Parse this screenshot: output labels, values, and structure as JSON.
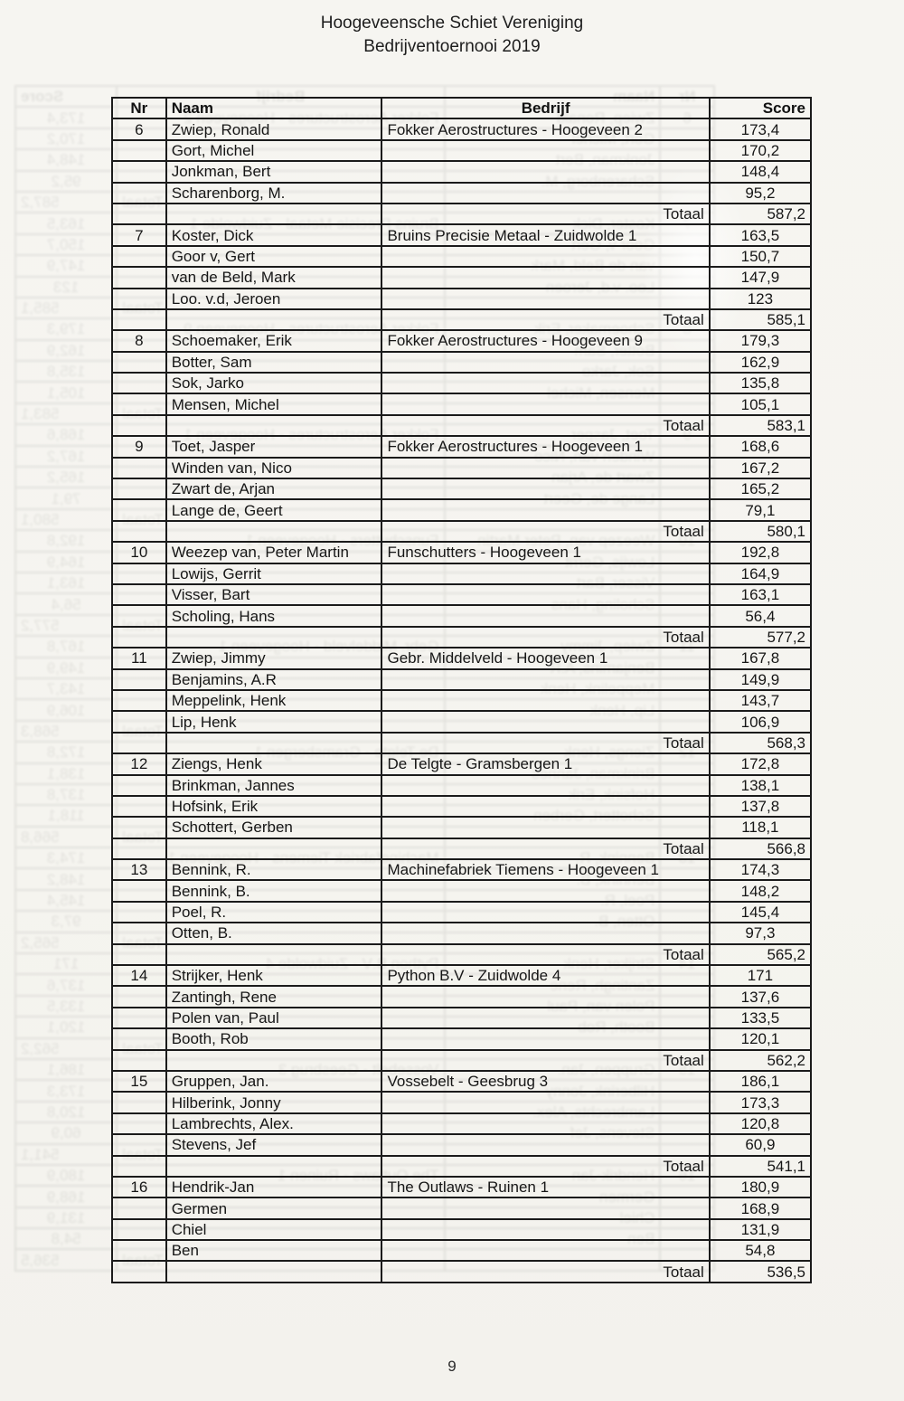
{
  "header": {
    "title": "Hoogeveensche Schiet Vereniging",
    "subtitle": "Bedrijventoernooi 2019"
  },
  "footer": {
    "page_number": "9"
  },
  "colors": {
    "paper": "#f5f4ef",
    "ink": "#161616",
    "table_border": "#1b1b1b"
  },
  "table": {
    "headers": {
      "nr": "Nr",
      "naam": "Naam",
      "bedrijf": "Bedrijf",
      "score": "Score"
    },
    "totaal_label": "Totaal",
    "groups": [
      {
        "nr": "6",
        "bedrijf": "Fokker Aerostructures - Hoogeveen 2",
        "players": [
          {
            "naam": "Zwiep, Ronald",
            "score": "173,4"
          },
          {
            "naam": "Gort, Michel",
            "score": "170,2"
          },
          {
            "naam": "Jonkman, Bert",
            "score": "148,4"
          },
          {
            "naam": "Scharenborg, M.",
            "score": "95,2"
          }
        ],
        "totaal": "587,2"
      },
      {
        "nr": "7",
        "bedrijf": "Bruins Precisie Metaal - Zuidwolde 1",
        "players": [
          {
            "naam": "Koster, Dick",
            "score": "163,5"
          },
          {
            "naam": "Goor v, Gert",
            "score": "150,7"
          },
          {
            "naam": "van de Beld, Mark",
            "score": "147,9"
          },
          {
            "naam": "Loo. v.d, Jeroen",
            "score": "123"
          }
        ],
        "totaal": "585,1"
      },
      {
        "nr": "8",
        "bedrijf": "Fokker Aerostructures - Hoogeveen 9",
        "players": [
          {
            "naam": "Schoemaker, Erik",
            "score": "179,3"
          },
          {
            "naam": "Botter, Sam",
            "score": "162,9"
          },
          {
            "naam": "Sok, Jarko",
            "score": "135,8"
          },
          {
            "naam": "Mensen, Michel",
            "score": "105,1"
          }
        ],
        "totaal": "583,1"
      },
      {
        "nr": "9",
        "bedrijf": "Fokker Aerostructures - Hoogeveen 1",
        "players": [
          {
            "naam": "Toet, Jasper",
            "score": "168,6"
          },
          {
            "naam": "Winden van, Nico",
            "score": "167,2"
          },
          {
            "naam": "Zwart de, Arjan",
            "score": "165,2"
          },
          {
            "naam": "Lange de, Geert",
            "score": "79,1"
          }
        ],
        "totaal": "580,1"
      },
      {
        "nr": "10",
        "bedrijf": "Funschutters - Hoogeveen 1",
        "players": [
          {
            "naam": "Weezep van, Peter Martin",
            "score": "192,8"
          },
          {
            "naam": "Lowijs, Gerrit",
            "score": "164,9"
          },
          {
            "naam": "Visser, Bart",
            "score": "163,1"
          },
          {
            "naam": "Scholing, Hans",
            "score": "56,4"
          }
        ],
        "totaal": "577,2"
      },
      {
        "nr": "11",
        "bedrijf": "Gebr. Middelveld - Hoogeveen 1",
        "players": [
          {
            "naam": "Zwiep, Jimmy",
            "score": "167,8"
          },
          {
            "naam": "Benjamins, A.R",
            "score": "149,9"
          },
          {
            "naam": "Meppelink, Henk",
            "score": "143,7"
          },
          {
            "naam": "Lip, Henk",
            "score": "106,9"
          }
        ],
        "totaal": "568,3"
      },
      {
        "nr": "12",
        "bedrijf": "De Telgte - Gramsbergen 1",
        "players": [
          {
            "naam": "Ziengs, Henk",
            "score": "172,8"
          },
          {
            "naam": "Brinkman, Jannes",
            "score": "138,1"
          },
          {
            "naam": "Hofsink, Erik",
            "score": "137,8"
          },
          {
            "naam": "Schottert, Gerben",
            "score": "118,1"
          }
        ],
        "totaal": "566,8"
      },
      {
        "nr": "13",
        "bedrijf": "Machinefabriek Tiemens - Hoogeveen 1",
        "players": [
          {
            "naam": "Bennink, R.",
            "score": "174,3"
          },
          {
            "naam": "Bennink, B.",
            "score": "148,2"
          },
          {
            "naam": "Poel, R.",
            "score": "145,4"
          },
          {
            "naam": "Otten, B.",
            "score": "97,3"
          }
        ],
        "totaal": "565,2"
      },
      {
        "nr": "14",
        "bedrijf": "Python B.V - Zuidwolde 4",
        "players": [
          {
            "naam": "Strijker, Henk",
            "score": "171"
          },
          {
            "naam": "Zantingh, Rene",
            "score": "137,6"
          },
          {
            "naam": "Polen van, Paul",
            "score": "133,5"
          },
          {
            "naam": "Booth, Rob",
            "score": "120,1"
          }
        ],
        "totaal": "562,2"
      },
      {
        "nr": "15",
        "bedrijf": "Vossebelt - Geesbrug 3",
        "players": [
          {
            "naam": "Gruppen, Jan.",
            "score": "186,1"
          },
          {
            "naam": "Hilberink, Jonny",
            "score": "173,3"
          },
          {
            "naam": "Lambrechts, Alex.",
            "score": "120,8"
          },
          {
            "naam": "Stevens, Jef",
            "score": "60,9"
          }
        ],
        "totaal": "541,1"
      },
      {
        "nr": "16",
        "bedrijf": "The Outlaws - Ruinen 1",
        "players": [
          {
            "naam": "Hendrik-Jan",
            "score": "180,9"
          },
          {
            "naam": "Germen",
            "score": "168,9"
          },
          {
            "naam": "Chiel",
            "score": "131,9"
          },
          {
            "naam": "Ben",
            "score": "54,8"
          }
        ],
        "totaal": "536,5"
      }
    ]
  }
}
